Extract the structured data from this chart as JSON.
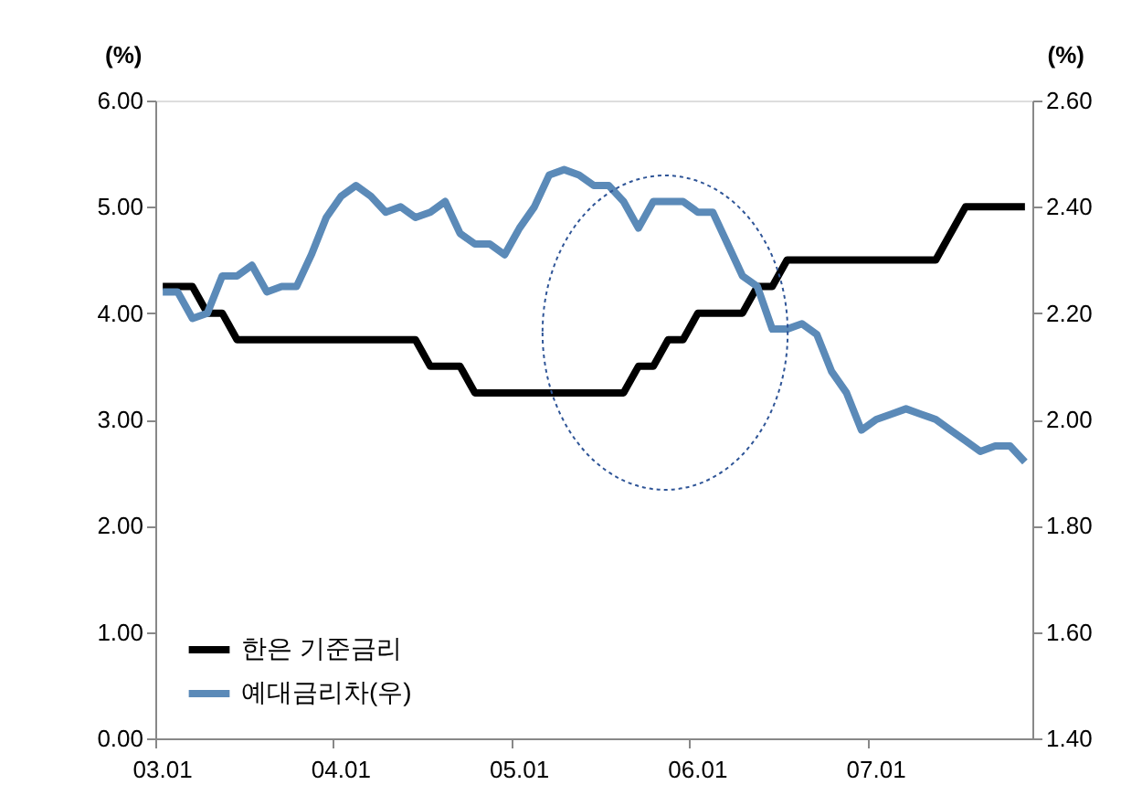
{
  "chart_data": {
    "type": "line",
    "categories": [
      "03.01",
      null,
      null,
      null,
      null,
      null,
      null,
      null,
      null,
      null,
      null,
      null,
      "04.01",
      null,
      null,
      null,
      null,
      null,
      null,
      null,
      null,
      null,
      null,
      null,
      "05.01",
      null,
      null,
      null,
      null,
      null,
      null,
      null,
      null,
      null,
      null,
      null,
      "06.01",
      null,
      null,
      null,
      null,
      null,
      null,
      null,
      null,
      null,
      null,
      null,
      "07.01",
      null,
      null,
      null,
      null,
      null,
      null,
      null,
      null,
      null,
      null
    ],
    "series": [
      {
        "name": "한은 기준금리",
        "color": "#000000",
        "values": [
          4.25,
          4.25,
          4.25,
          4.0,
          4.0,
          3.75,
          3.75,
          3.75,
          3.75,
          3.75,
          3.75,
          3.75,
          3.75,
          3.75,
          3.75,
          3.75,
          3.75,
          3.75,
          3.5,
          3.5,
          3.5,
          3.25,
          3.25,
          3.25,
          3.25,
          3.25,
          3.25,
          3.25,
          3.25,
          3.25,
          3.25,
          3.25,
          3.5,
          3.5,
          3.75,
          3.75,
          4.0,
          4.0,
          4.0,
          4.0,
          4.25,
          4.25,
          4.5,
          4.5,
          4.5,
          4.5,
          4.5,
          4.5,
          4.5,
          4.5,
          4.5,
          4.5,
          4.5,
          4.75,
          5.0,
          5.0,
          5.0,
          5.0,
          5.0
        ]
      },
      {
        "name": "예대금리차(우)",
        "color": "#5b8ab8",
        "axis": "y2",
        "values": [
          2.24,
          2.24,
          2.19,
          2.2,
          2.27,
          2.27,
          2.29,
          2.24,
          2.25,
          2.25,
          2.31,
          2.38,
          2.42,
          2.44,
          2.42,
          2.39,
          2.4,
          2.38,
          2.39,
          2.41,
          2.35,
          2.33,
          2.33,
          2.31,
          2.36,
          2.4,
          2.46,
          2.47,
          2.46,
          2.44,
          2.44,
          2.41,
          2.36,
          2.41,
          2.41,
          2.41,
          2.39,
          2.39,
          2.33,
          2.27,
          2.25,
          2.17,
          2.17,
          2.18,
          2.16,
          2.09,
          2.05,
          1.98,
          2.0,
          2.01,
          2.02,
          2.01,
          2.0,
          1.98,
          1.96,
          1.94,
          1.95,
          1.95,
          1.92
        ]
      }
    ],
    "ylabel": "(%)",
    "y2label": "(%)",
    "ylim": [
      0,
      6
    ],
    "yticks": [
      {
        "value": 0,
        "label": "0.00"
      },
      {
        "value": 1,
        "label": "1.00"
      },
      {
        "value": 2,
        "label": "2.00"
      },
      {
        "value": 3,
        "label": "3.00"
      },
      {
        "value": 4,
        "label": "4.00"
      },
      {
        "value": 5,
        "label": "5.00"
      },
      {
        "value": 6,
        "label": "6.00"
      }
    ],
    "y2lim": [
      1.4,
      2.6
    ],
    "y2ticks": [
      {
        "value": 1.4,
        "label": "1.40"
      },
      {
        "value": 1.6,
        "label": "1.60"
      },
      {
        "value": 1.8,
        "label": "1.80"
      },
      {
        "value": 2.0,
        "label": "2.00"
      },
      {
        "value": 2.2,
        "label": "2.20"
      },
      {
        "value": 2.4,
        "label": "2.40"
      },
      {
        "value": 2.6,
        "label": "2.60"
      }
    ],
    "grid": false,
    "legend": "bottom left",
    "marker": "none",
    "line_style": "solid"
  }
}
